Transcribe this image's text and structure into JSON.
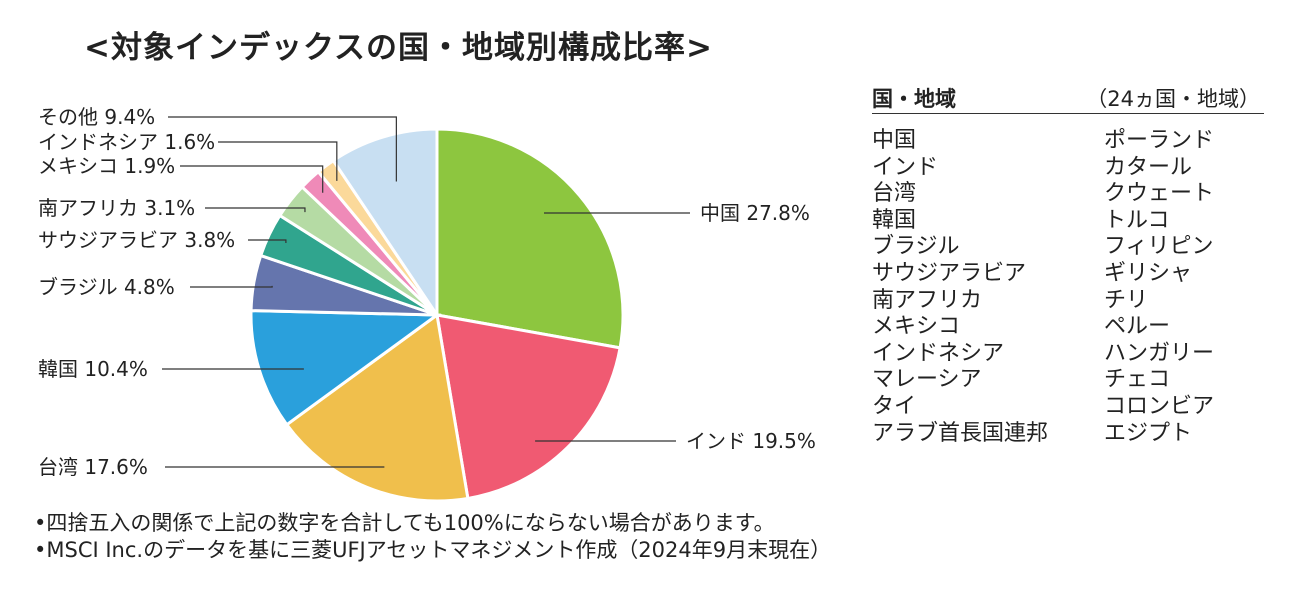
{
  "title": "<対象インデックスの国・地域別構成比率>",
  "chart_data": {
    "type": "pie",
    "title": "<対象インデックスの国・地域別構成比率>",
    "slices": [
      {
        "label": "中国",
        "value": 27.8,
        "display": "中国 27.8%",
        "color": "#8dc63f"
      },
      {
        "label": "インド",
        "value": 19.5,
        "display": "インド 19.5%",
        "color": "#f05a72"
      },
      {
        "label": "台湾",
        "value": 17.6,
        "display": "台湾 17.6%",
        "color": "#f0bf4c"
      },
      {
        "label": "韓国",
        "value": 10.4,
        "display": "韓国 10.4%",
        "color": "#2aa0dc"
      },
      {
        "label": "ブラジル",
        "value": 4.8,
        "display": "ブラジル 4.8%",
        "color": "#6575ad"
      },
      {
        "label": "サウジアラビア",
        "value": 3.8,
        "display": "サウジアラビア 3.8%",
        "color": "#30a58e"
      },
      {
        "label": "南アフリカ",
        "value": 3.1,
        "display": "南アフリカ 3.1%",
        "color": "#b5dba4"
      },
      {
        "label": "メキシコ",
        "value": 1.9,
        "display": "メキシコ 1.9%",
        "color": "#ef8ab8"
      },
      {
        "label": "インドネシア",
        "value": 1.6,
        "display": "インドネシア 1.6%",
        "color": "#fbd99a"
      },
      {
        "label": "その他",
        "value": 9.4,
        "display": "その他 9.4%",
        "color": "#c8dff2"
      }
    ]
  },
  "sidebar": {
    "heading": "国・地域",
    "count": "（24ヵ国・地域）",
    "left_column": [
      "中国",
      "インド",
      "台湾",
      "韓国",
      "ブラジル",
      "サウジアラビア",
      "南アフリカ",
      "メキシコ",
      "インドネシア",
      "マレーシア",
      "タイ",
      "アラブ首長国連邦"
    ],
    "right_column": [
      "ポーランド",
      "カタール",
      "クウェート",
      "トルコ",
      "フィリピン",
      "ギリシャ",
      "チリ",
      "ペルー",
      "ハンガリー",
      "チェコ",
      "コロンビア",
      "エジプト"
    ]
  },
  "notes": [
    "•四捨五入の関係で上記の数字を合計しても100%にならない場合があります。",
    "•MSCI Inc.のデータを基に三菱UFJアセットマネジメント作成（2024年9月末現在）"
  ]
}
